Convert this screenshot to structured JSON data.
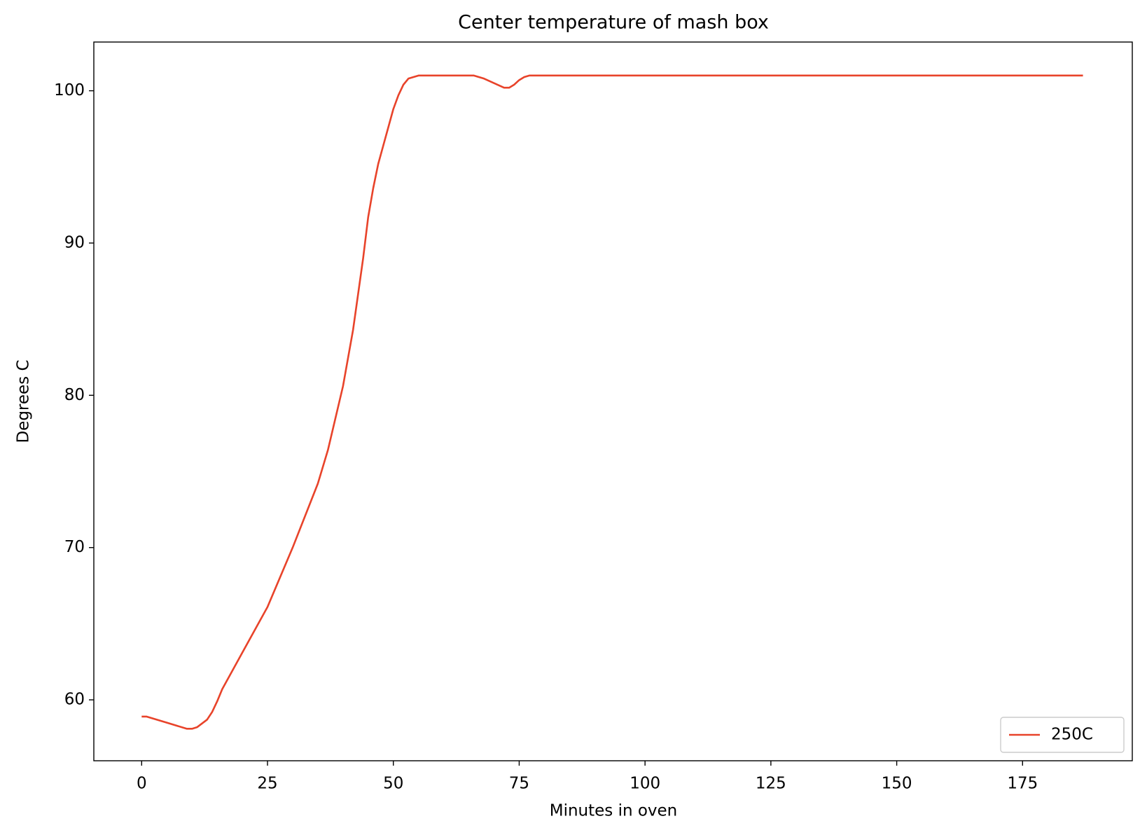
{
  "chart_data": {
    "type": "line",
    "title": "Center temperature of mash box",
    "xlabel": "Minutes in oven",
    "ylabel": "Degrees C",
    "x": [
      0,
      1,
      5,
      9,
      10,
      11,
      13,
      14,
      15,
      16,
      20,
      25,
      30,
      35,
      37,
      40,
      42,
      44,
      45,
      46,
      47,
      48,
      49,
      50,
      51,
      52,
      53,
      54,
      55,
      66,
      67,
      68,
      70,
      72,
      73,
      74,
      75,
      76,
      77,
      187
    ],
    "series": [
      {
        "name": "250C",
        "color": "#e8432a",
        "values": [
          58.9,
          58.9,
          58.5,
          58.1,
          58.1,
          58.2,
          58.7,
          59.2,
          59.9,
          60.7,
          63.1,
          66.1,
          70.0,
          74.2,
          76.4,
          80.6,
          84.3,
          89.0,
          91.7,
          93.6,
          95.2,
          96.4,
          97.6,
          98.8,
          99.7,
          100.4,
          100.8,
          100.9,
          101.0,
          101.0,
          100.9,
          100.8,
          100.5,
          100.2,
          100.2,
          100.4,
          100.7,
          100.9,
          101.0,
          101.0
        ]
      }
    ],
    "xlim": [
      -9.5,
      196.8
    ],
    "ylim": [
      56.0,
      103.2
    ],
    "xticks": [
      0,
      25,
      50,
      75,
      100,
      125,
      150,
      175
    ],
    "yticks": [
      60,
      70,
      80,
      90,
      100
    ],
    "grid": false,
    "legend": "lower right"
  }
}
